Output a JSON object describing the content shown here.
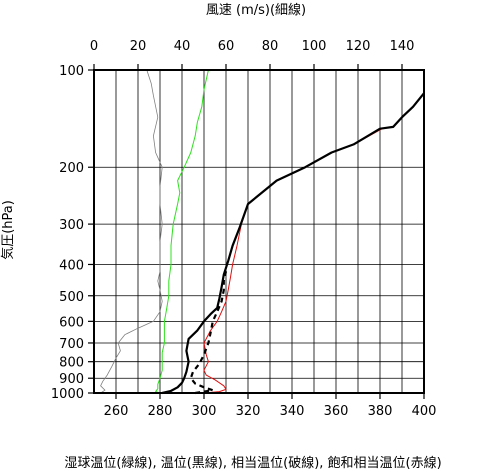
{
  "chart_data": {
    "type": "line",
    "title": "",
    "top_axis": {
      "label": "風速 (m/s)(細線)",
      "range": [
        0,
        150
      ],
      "ticks": [
        0,
        20,
        40,
        60,
        80,
        100,
        120,
        140
      ]
    },
    "bottom_axis": {
      "label": "湿球温位(緑線), 温位(黒線), 相当温位(破線), 飽和相当温位(赤線)",
      "range": [
        250,
        400
      ],
      "ticks": [
        260,
        280,
        300,
        320,
        340,
        360,
        380,
        400
      ]
    },
    "y_axis": {
      "label": "気圧(hPa)",
      "scale": "log",
      "range": [
        1000,
        100
      ],
      "ticks": [
        100,
        200,
        300,
        400,
        500,
        600,
        700,
        800,
        900,
        1000
      ]
    },
    "grid": true,
    "series": [
      {
        "color": "#e01010",
        "style": "solid",
        "axis": "bottom",
        "points": [
          [
            300,
            1000
          ],
          [
            307,
            990
          ],
          [
            310,
            975
          ],
          [
            309,
            950
          ],
          [
            305,
            910
          ],
          [
            301,
            880
          ],
          [
            300,
            850
          ],
          [
            302,
            800
          ],
          [
            301,
            760
          ],
          [
            300,
            700
          ],
          [
            303,
            640
          ],
          [
            306,
            600
          ],
          [
            308,
            560
          ],
          [
            310,
            520
          ],
          [
            311,
            480
          ],
          [
            312,
            440
          ],
          [
            313,
            400
          ],
          [
            315,
            350
          ],
          [
            317,
            300
          ],
          [
            320,
            260
          ],
          [
            333,
            220
          ],
          [
            346,
            200
          ],
          [
            358,
            180
          ],
          [
            368,
            170
          ],
          [
            381,
            152
          ],
          [
            386,
            150
          ],
          [
            390,
            140
          ],
          [
            395,
            130
          ],
          [
            400,
            118
          ]
        ]
      },
      {
        "color": "#000000",
        "style": "solid",
        "axis": "bottom",
        "points": [
          [
            281,
            1000
          ],
          [
            285,
            985
          ],
          [
            288,
            960
          ],
          [
            290,
            930
          ],
          [
            291,
            900
          ],
          [
            292,
            860
          ],
          [
            293,
            800
          ],
          [
            292,
            740
          ],
          [
            293,
            680
          ],
          [
            297,
            640
          ],
          [
            300,
            600
          ],
          [
            303,
            570
          ],
          [
            306,
            545
          ],
          [
            307,
            510
          ],
          [
            308,
            470
          ],
          [
            309,
            430
          ],
          [
            311,
            390
          ],
          [
            313,
            350
          ],
          [
            316,
            310
          ],
          [
            320,
            260
          ],
          [
            333,
            220
          ],
          [
            346,
            200
          ],
          [
            358,
            180
          ],
          [
            368,
            170
          ],
          [
            380,
            152
          ],
          [
            386,
            150
          ],
          [
            390,
            140
          ],
          [
            395,
            130
          ],
          [
            400,
            118
          ]
        ]
      },
      {
        "color": "#000000",
        "style": "dashed",
        "axis": "bottom",
        "points": [
          [
            296,
            1000
          ],
          [
            304,
            980
          ],
          [
            300,
            960
          ],
          [
            296,
            935
          ],
          [
            294,
            900
          ],
          [
            295,
            860
          ],
          [
            298,
            810
          ],
          [
            300,
            760
          ],
          [
            302,
            700
          ],
          [
            303,
            650
          ],
          [
            304,
            600
          ],
          [
            306,
            560
          ],
          [
            308,
            520
          ],
          [
            309,
            480
          ],
          [
            309,
            450
          ],
          [
            310,
            420
          ]
        ]
      },
      {
        "color": "#30e020",
        "style": "solid",
        "axis": "bottom",
        "points": [
          [
            280,
            1000
          ],
          [
            278,
            990
          ],
          [
            279,
            970
          ],
          [
            279,
            940
          ],
          [
            280,
            900
          ],
          [
            281,
            850
          ],
          [
            281,
            800
          ],
          [
            281,
            750
          ],
          [
            282,
            700
          ],
          [
            282,
            650
          ],
          [
            282,
            600
          ],
          [
            283,
            550
          ],
          [
            284,
            500
          ],
          [
            284,
            450
          ],
          [
            285,
            400
          ],
          [
            285,
            350
          ],
          [
            286,
            300
          ],
          [
            288,
            260
          ],
          [
            289,
            240
          ],
          [
            288,
            220
          ],
          [
            291,
            200
          ],
          [
            294,
            180
          ],
          [
            296,
            160
          ],
          [
            297,
            145
          ],
          [
            299,
            130
          ],
          [
            300,
            115
          ],
          [
            302,
            100
          ]
        ]
      },
      {
        "color": "#808080",
        "style": "solid",
        "axis": "top",
        "points": [
          [
            3,
            1000
          ],
          [
            5,
            980
          ],
          [
            3,
            950
          ],
          [
            4,
            920
          ],
          [
            6,
            880
          ],
          [
            8,
            830
          ],
          [
            10,
            780
          ],
          [
            12,
            740
          ],
          [
            11,
            700
          ],
          [
            14,
            660
          ],
          [
            20,
            630
          ],
          [
            27,
            600
          ],
          [
            30,
            560
          ],
          [
            31,
            520
          ],
          [
            30,
            480
          ],
          [
            29,
            450
          ],
          [
            30,
            420
          ],
          [
            30,
            400
          ],
          [
            30,
            370
          ],
          [
            30,
            340
          ],
          [
            31,
            300
          ],
          [
            30,
            260
          ],
          [
            30,
            230
          ],
          [
            31,
            200
          ],
          [
            28,
            180
          ],
          [
            27,
            160
          ],
          [
            29,
            140
          ],
          [
            27,
            120
          ],
          [
            26,
            110
          ],
          [
            24,
            100
          ]
        ]
      }
    ]
  }
}
